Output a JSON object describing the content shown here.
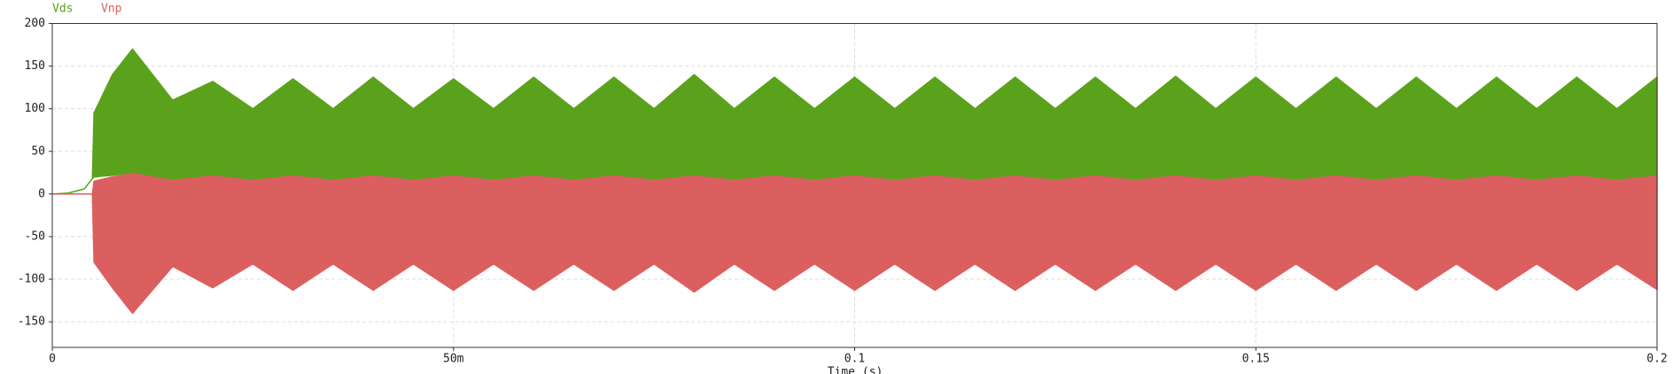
{
  "chart_data": {
    "type": "band",
    "xlabel": "Time (s)",
    "xlim": [
      0,
      0.2
    ],
    "ylim": [
      -180,
      200
    ],
    "xticks": [
      0,
      {
        "value": 0.05,
        "label": "50m"
      },
      0.1,
      0.15,
      0.2
    ],
    "yticks": [
      200,
      150,
      100,
      50,
      0,
      -50,
      -100,
      -150
    ],
    "grid": true,
    "x": [
      0,
      0.002,
      0.004,
      0.005,
      0.0052,
      0.0075,
      0.01,
      0.015,
      0.02,
      0.025,
      0.03,
      0.035,
      0.04,
      0.045,
      0.05,
      0.055,
      0.06,
      0.065,
      0.07,
      0.075,
      0.08,
      0.085,
      0.09,
      0.095,
      0.1,
      0.105,
      0.11,
      0.115,
      0.12,
      0.125,
      0.13,
      0.135,
      0.14,
      0.145,
      0.15,
      0.155,
      0.16,
      0.165,
      0.17,
      0.175,
      0.18,
      0.185,
      0.19,
      0.195,
      0.2
    ],
    "series": [
      {
        "name": "Vds",
        "color": "#5aa21b",
        "upper": [
          0,
          1,
          6,
          18,
          95,
          140,
          170,
          110,
          132,
          100,
          135,
          100,
          137,
          100,
          135,
          100,
          137,
          100,
          137,
          100,
          140,
          100,
          137,
          100,
          137,
          100,
          137,
          100,
          137,
          100,
          137,
          100,
          138,
          100,
          137,
          100,
          137,
          100,
          137,
          100,
          137,
          100,
          137,
          100,
          137
        ],
        "lower": [
          0,
          1,
          6,
          18,
          20,
          22,
          25,
          16,
          21,
          16,
          21,
          16,
          21,
          16,
          21,
          16,
          21,
          16,
          21,
          16,
          21,
          16,
          21,
          16,
          21,
          16,
          21,
          16,
          21,
          16,
          21,
          16,
          21,
          16,
          21,
          16,
          21,
          16,
          21,
          16,
          21,
          16,
          21,
          16,
          20
        ]
      },
      {
        "name": "Vnp",
        "color": "#dc5f5f",
        "upper": [
          0,
          0,
          0,
          0,
          15,
          20,
          24,
          16,
          21,
          16,
          21,
          16,
          21,
          16,
          21,
          16,
          21,
          16,
          21,
          16,
          21,
          16,
          21,
          16,
          21,
          16,
          21,
          16,
          21,
          16,
          21,
          16,
          21,
          16,
          21,
          16,
          21,
          16,
          21,
          16,
          21,
          16,
          21,
          16,
          21
        ],
        "lower": [
          0,
          0,
          0,
          0,
          -80,
          -110,
          -140,
          -85,
          -110,
          -82,
          -113,
          -82,
          -113,
          -82,
          -113,
          -82,
          -113,
          -82,
          -113,
          -82,
          -115,
          -82,
          -113,
          -82,
          -113,
          -82,
          -113,
          -82,
          -113,
          -82,
          -113,
          -82,
          -113,
          -82,
          -113,
          -82,
          -113,
          -82,
          -113,
          -82,
          -113,
          -82,
          -113,
          -82,
          -112
        ]
      }
    ]
  }
}
